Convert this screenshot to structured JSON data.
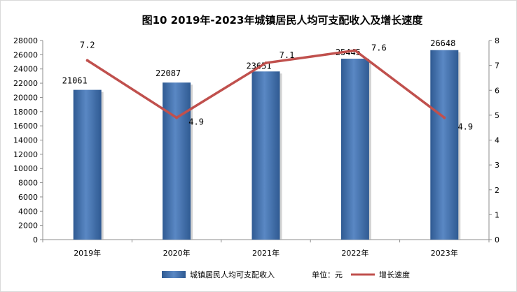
{
  "chart_data": {
    "type": "bar",
    "title": "图10 2019年-2023年城镇居民人均可支配收入及增长速度",
    "categories": [
      "2019年",
      "2020年",
      "2021年",
      "2022年",
      "2023年"
    ],
    "series": [
      {
        "name": "城镇居民人均可支配收入",
        "type": "bar",
        "axis": "left",
        "values": [
          21061,
          22087,
          23651,
          25445,
          26648
        ],
        "labels": [
          "21061",
          "22087",
          "23651",
          "25445",
          "26648"
        ],
        "color": "#4a78b4"
      },
      {
        "name": "增长速度",
        "type": "line",
        "axis": "right",
        "values": [
          7.2,
          4.9,
          7.1,
          7.6,
          4.9
        ],
        "labels": [
          "7.2",
          "4.9",
          "7.1",
          "7.6",
          "4.9"
        ],
        "color": "#c0504d"
      }
    ],
    "y_left": {
      "range": [
        0,
        28000
      ],
      "ticks": [
        "0",
        "2000",
        "4000",
        "6000",
        "8000",
        "10000",
        "12000",
        "14000",
        "16000",
        "18000",
        "20000",
        "22000",
        "24000",
        "26000",
        "28000"
      ]
    },
    "y_right": {
      "range": [
        0,
        8
      ],
      "ticks": [
        "0",
        "1",
        "2",
        "3",
        "4",
        "5",
        "6",
        "7",
        "8"
      ]
    },
    "unit_note": "单位：元",
    "grid": false,
    "legend_position": "bottom"
  }
}
